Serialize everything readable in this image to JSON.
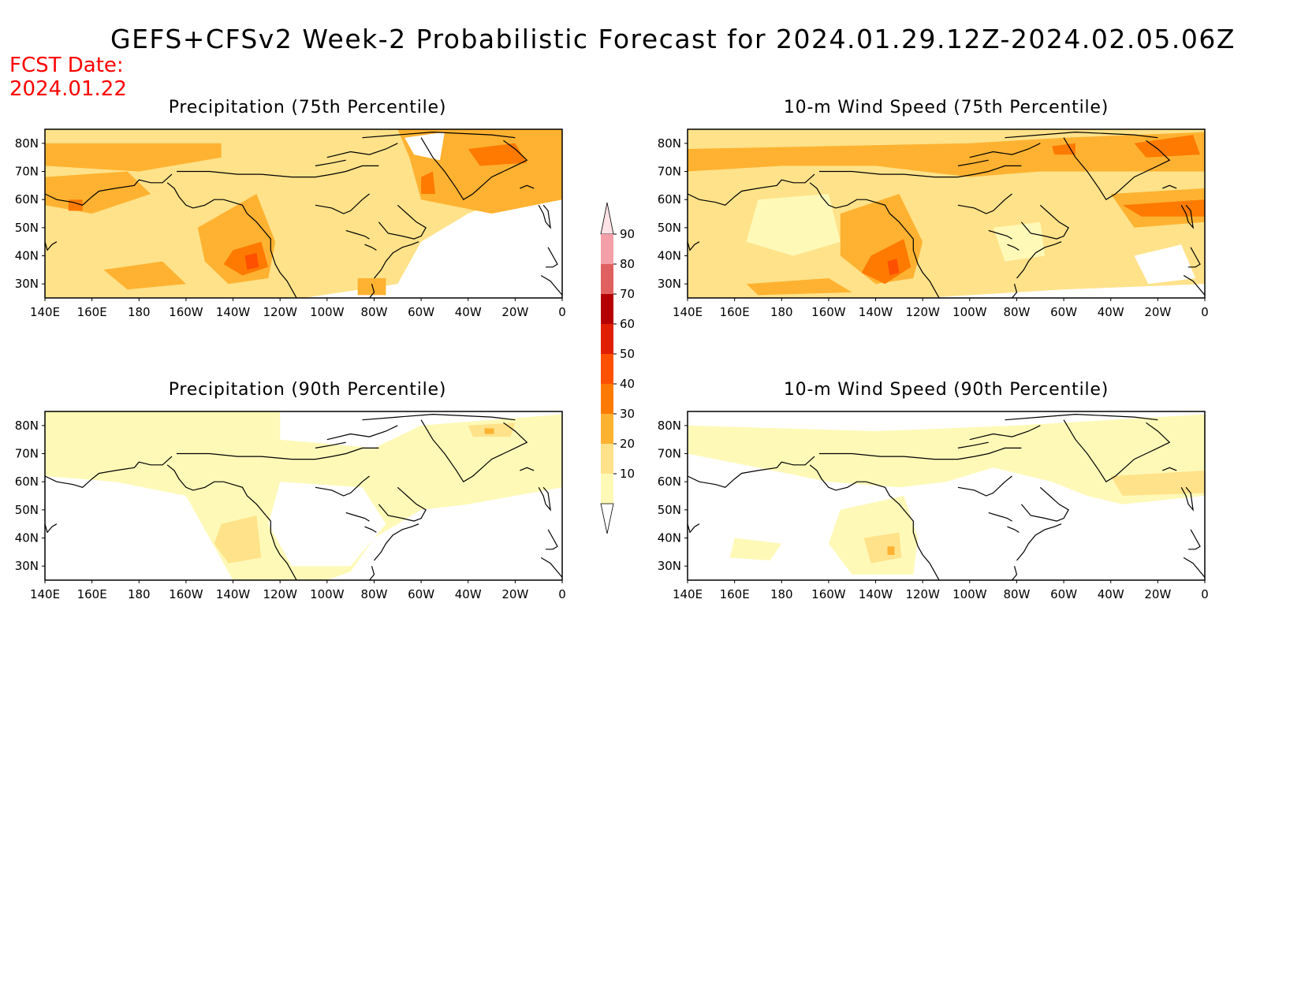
{
  "header": {
    "title": "GEFS+CFSv2 Week-2 Probabilistic Forecast for 2024.01.29.12Z-2024.02.05.06Z",
    "fcst_label": "FCST Date:",
    "fcst_date": "2024.01.22"
  },
  "panels": [
    {
      "title": "Precipitation (75th Percentile)",
      "field": "precip",
      "percentile": 75
    },
    {
      "title": "10-m Wind Speed (75th Percentile)",
      "field": "wind",
      "percentile": 75
    },
    {
      "title": "Precipitation (90th Percentile)",
      "field": "precip",
      "percentile": 90
    },
    {
      "title": "10-m Wind Speed (90th Percentile)",
      "field": "wind",
      "percentile": 90
    }
  ],
  "axes": {
    "lon_ticks": [
      "140E",
      "160E",
      "180",
      "160W",
      "140W",
      "120W",
      "100W",
      "80W",
      "60W",
      "40W",
      "20W",
      "0"
    ],
    "lat_ticks": [
      "80N",
      "70N",
      "60N",
      "50N",
      "40N",
      "30N"
    ],
    "lon_range": [
      "140E",
      "0"
    ],
    "lat_range": [
      "25N",
      "85N"
    ]
  },
  "colorbar": {
    "levels": [
      "10",
      "20",
      "30",
      "40",
      "50",
      "60",
      "70",
      "80",
      "90"
    ],
    "colors": [
      "#fff9b8",
      "#ffe28a",
      "#ffb231",
      "#ff7a00",
      "#ff5000",
      "#e01e00",
      "#b40000",
      "#e06060",
      "#f4a0a8"
    ],
    "top_color": "#fde2e6"
  }
}
